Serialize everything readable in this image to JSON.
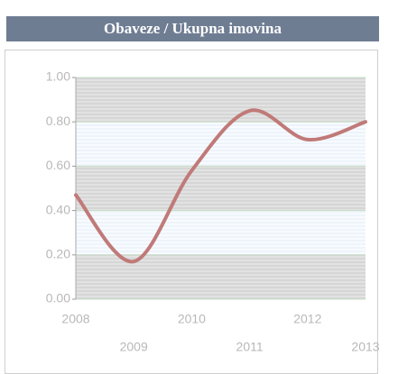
{
  "chart_data": {
    "type": "line",
    "title": "Obaveze / Ukupna imovina",
    "x": [
      2008,
      2009,
      2010,
      2011,
      2012,
      2013
    ],
    "series": [
      {
        "name": "Obaveze / Ukupna imovina",
        "color": "#c07a78",
        "values": [
          0.47,
          0.17,
          0.58,
          0.85,
          0.72,
          0.8
        ]
      }
    ],
    "xlim": [
      2008,
      2013
    ],
    "ylim": [
      0,
      1
    ],
    "yticks": [
      {
        "value": 0,
        "label": "0.00"
      },
      {
        "value": 0.2,
        "label": "0.20"
      },
      {
        "value": 0.4,
        "label": "0.40"
      },
      {
        "value": 0.6,
        "label": "0.60"
      },
      {
        "value": 0.8,
        "label": "0.80"
      },
      {
        "value": 1,
        "label": "1.00"
      }
    ],
    "grid": true
  }
}
